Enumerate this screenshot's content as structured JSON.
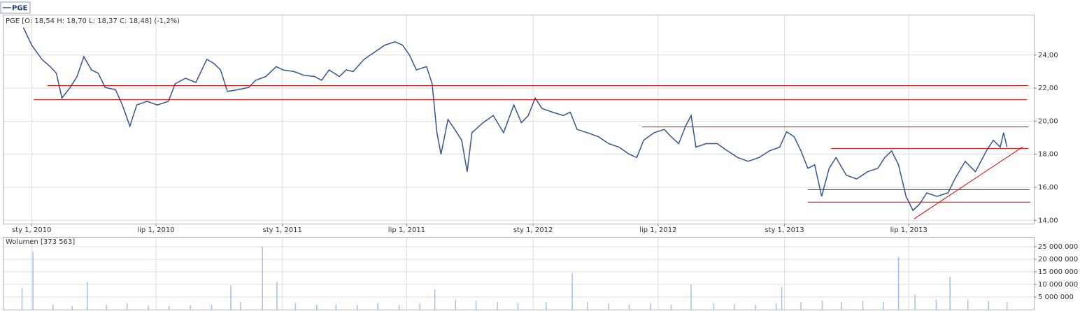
{
  "chart_data": [
    {
      "type": "line",
      "title": "PGE [O: 18,54  H: 18,70  L: 18,37  C: 18,48] (-1,2%)",
      "x": [
        "2009-12-20",
        "2010-01-01",
        "2010-01-16",
        "2010-01-28",
        "2010-02-06",
        "2010-02-14",
        "2010-02-26",
        "2010-03-08",
        "2010-03-18",
        "2010-03-29",
        "2010-04-08",
        "2010-04-18",
        "2010-05-03",
        "2010-05-13",
        "2010-05-24",
        "2010-06-03",
        "2010-06-18",
        "2010-07-03",
        "2010-07-19",
        "2010-07-29",
        "2010-08-13",
        "2010-08-28",
        "2010-09-13",
        "2010-09-23",
        "2010-10-03",
        "2010-10-13",
        "2010-10-28",
        "2010-11-13",
        "2010-11-23",
        "2010-12-08",
        "2010-12-23",
        "2011-01-02",
        "2011-01-18",
        "2011-02-02",
        "2011-02-17",
        "2011-02-27",
        "2011-03-10",
        "2011-03-25",
        "2011-04-04",
        "2011-04-14",
        "2011-04-30",
        "2011-05-15",
        "2011-05-30",
        "2011-06-14",
        "2011-06-25",
        "2011-07-05",
        "2011-07-15",
        "2011-07-30",
        "2011-08-07",
        "2011-08-14",
        "2011-08-20",
        "2011-08-30",
        "2011-09-09",
        "2011-09-19",
        "2011-09-27",
        "2011-10-04",
        "2011-10-20",
        "2011-11-04",
        "2011-11-19",
        "2011-12-04",
        "2011-12-15",
        "2011-12-25",
        "2012-01-04",
        "2012-01-14",
        "2012-01-29",
        "2012-02-14",
        "2012-02-24",
        "2012-03-05",
        "2012-03-20",
        "2012-04-05",
        "2012-04-20",
        "2012-05-05",
        "2012-05-20",
        "2012-05-31",
        "2012-06-10",
        "2012-06-25",
        "2012-07-10",
        "2012-07-20",
        "2012-07-31",
        "2012-08-10",
        "2012-08-18",
        "2012-08-25",
        "2012-09-09",
        "2012-09-25",
        "2012-10-10",
        "2012-10-25",
        "2012-11-09",
        "2012-11-25",
        "2012-12-10",
        "2012-12-25",
        "2013-01-04",
        "2013-01-15",
        "2013-01-25",
        "2013-02-04",
        "2013-02-14",
        "2013-02-24",
        "2013-03-07",
        "2013-03-17",
        "2013-04-01",
        "2013-04-16",
        "2013-05-02",
        "2013-05-17",
        "2013-05-27",
        "2013-06-06",
        "2013-06-16",
        "2013-06-27",
        "2013-07-07",
        "2013-07-17",
        "2013-07-27",
        "2013-08-11",
        "2013-08-27",
        "2013-09-06",
        "2013-09-21",
        "2013-10-06",
        "2013-10-22",
        "2013-11-01",
        "2013-11-11",
        "2013-11-16",
        "2013-11-21"
      ],
      "series": [
        {
          "name": "PGE",
          "color": "#34558f",
          "values": [
            25.66,
            24.6,
            23.74,
            23.3,
            22.9,
            21.4,
            22.04,
            22.7,
            23.9,
            23.1,
            22.9,
            22.04,
            21.9,
            20.98,
            19.7,
            20.98,
            21.2,
            20.98,
            21.2,
            22.26,
            22.6,
            22.34,
            23.74,
            23.5,
            23.1,
            21.8,
            21.9,
            22.04,
            22.47,
            22.7,
            23.3,
            23.1,
            23.0,
            22.77,
            22.7,
            22.47,
            23.1,
            22.7,
            23.1,
            23.0,
            23.74,
            24.17,
            24.6,
            24.8,
            24.6,
            24.0,
            23.1,
            23.3,
            22.26,
            19.3,
            18.0,
            20.1,
            19.5,
            18.85,
            16.94,
            19.3,
            19.9,
            20.34,
            19.3,
            20.98,
            19.9,
            20.34,
            21.4,
            20.77,
            20.55,
            20.34,
            20.55,
            19.5,
            19.3,
            19.06,
            18.64,
            18.43,
            18.0,
            17.8,
            18.85,
            19.3,
            19.5,
            19.06,
            18.64,
            19.7,
            20.34,
            18.43,
            18.64,
            18.64,
            18.2,
            17.8,
            17.57,
            17.8,
            18.2,
            18.43,
            19.36,
            19.06,
            18.2,
            17.15,
            17.36,
            15.45,
            17.15,
            17.8,
            16.73,
            16.5,
            16.94,
            17.15,
            17.8,
            18.2,
            17.36,
            15.45,
            14.6,
            15.0,
            15.66,
            15.45,
            15.66,
            16.5,
            17.57,
            16.94,
            18.2,
            18.85,
            18.43,
            19.3,
            18.43
          ]
        }
      ],
      "annotations": [
        {
          "x": [
            "2010-01-24",
            "2013-12-22"
          ],
          "y": [
            22.15,
            22.15
          ]
        },
        {
          "x": [
            "2010-01-04",
            "2013-12-20"
          ],
          "y": [
            21.3,
            21.3
          ]
        },
        {
          "x": [
            "2012-06-08",
            "2013-12-22"
          ],
          "y": [
            19.65,
            19.65
          ]
        },
        {
          "x": [
            "2013-03-10",
            "2013-12-22"
          ],
          "y": [
            18.35,
            18.35
          ]
        },
        {
          "x": [
            "2013-02-04",
            "2013-12-24"
          ],
          "y": [
            15.85,
            15.85
          ]
        },
        {
          "x": [
            "2013-02-04",
            "2013-12-25"
          ],
          "y": [
            15.1,
            15.1
          ]
        },
        {
          "x": [
            "2013-07-09",
            "2013-12-14"
          ],
          "y": [
            14.1,
            18.45
          ]
        }
      ],
      "annotation_color": "#e00000",
      "xlim": [
        "2009-11-21",
        "2013-12-30"
      ],
      "xticks": [
        {
          "value": "2010-01-01",
          "label": "sty 1, 2010"
        },
        {
          "value": "2010-07-01",
          "label": "lip 1, 2010"
        },
        {
          "value": "2011-01-01",
          "label": "sty 1, 2011"
        },
        {
          "value": "2011-07-01",
          "label": "lip 1, 2011"
        },
        {
          "value": "2012-01-01",
          "label": "sty 1, 2012"
        },
        {
          "value": "2012-07-01",
          "label": "lip 1, 2012"
        },
        {
          "value": "2013-01-01",
          "label": "sty 1, 2013"
        },
        {
          "value": "2013-07-01",
          "label": "lip 1, 2013"
        }
      ],
      "ylim": [
        13.8,
        26.4
      ],
      "yticks": [
        {
          "value": 14,
          "label": "14,00"
        },
        {
          "value": 16,
          "label": "16,00"
        },
        {
          "value": 18,
          "label": "18,00"
        },
        {
          "value": 20,
          "label": "20,00"
        },
        {
          "value": 22,
          "label": "22,00"
        },
        {
          "value": 24,
          "label": "24,00"
        }
      ],
      "grid": true
    },
    {
      "type": "bar",
      "title": "Wolumen [373 563]",
      "color": "#9fc3ea",
      "x": [
        "2009-12-18",
        "2010-01-03",
        "2010-02-01",
        "2010-03-01",
        "2010-03-23",
        "2010-04-20",
        "2010-05-20",
        "2010-06-20",
        "2010-07-20",
        "2010-08-20",
        "2010-09-20",
        "2010-10-18",
        "2010-11-01",
        "2010-12-03",
        "2010-12-24",
        "2011-01-20",
        "2011-02-20",
        "2011-03-20",
        "2011-04-20",
        "2011-05-20",
        "2011-06-20",
        "2011-07-20",
        "2011-08-11",
        "2011-09-10",
        "2011-10-10",
        "2011-11-10",
        "2011-12-10",
        "2012-01-20",
        "2012-02-27",
        "2012-03-20",
        "2012-04-20",
        "2012-05-20",
        "2012-06-20",
        "2012-07-20",
        "2012-08-18",
        "2012-09-20",
        "2012-10-20",
        "2012-11-20",
        "2012-12-20",
        "2012-12-28",
        "2013-01-25",
        "2013-02-25",
        "2013-03-25",
        "2013-04-25",
        "2013-05-25",
        "2013-06-16",
        "2013-07-10",
        "2013-08-10",
        "2013-08-30",
        "2013-09-25",
        "2013-10-25",
        "2013-11-21"
      ],
      "values": [
        8500000,
        23000000,
        2000000,
        1500000,
        11000000,
        1800000,
        2500000,
        1600000,
        1400000,
        1700000,
        2000000,
        9500000,
        3000000,
        25000000,
        11000000,
        2500000,
        2000000,
        2200000,
        1800000,
        2500000,
        2000000,
        2500000,
        8000000,
        4000000,
        3500000,
        3000000,
        2500000,
        3000000,
        14500000,
        3000000,
        2500000,
        2000000,
        2500000,
        2000000,
        10000000,
        2500000,
        2200000,
        2000000,
        2500000,
        9000000,
        3000000,
        3500000,
        3000000,
        3500000,
        3000000,
        21000000,
        6000000,
        4000000,
        13000000,
        4000000,
        3500000,
        3000000
      ],
      "ylim": [
        0,
        28600000
      ],
      "yticks": [
        {
          "value": 5000000,
          "label": "5 000 000"
        },
        {
          "value": 10000000,
          "label": "10 000 000"
        },
        {
          "value": 15000000,
          "label": "15 000 000"
        },
        {
          "value": 20000000,
          "label": "20 000 000"
        },
        {
          "value": 25000000,
          "label": "25 000 000"
        }
      ],
      "grid": true
    }
  ]
}
